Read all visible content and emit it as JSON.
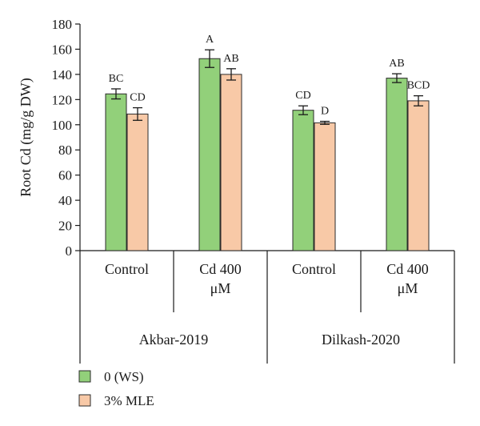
{
  "chart_data": {
    "type": "bar",
    "ylabel": "Root Cd (mg/g DW)",
    "xlabel": "",
    "ylim": [
      0,
      180
    ],
    "yticks": [
      0,
      20,
      40,
      60,
      80,
      100,
      120,
      140,
      160,
      180
    ],
    "groups": [
      {
        "name": "Akbar-2019",
        "categories": [
          "Control",
          "Cd 400 μM"
        ]
      },
      {
        "name": "Dilkash-2020",
        "categories": [
          "Control",
          "Cd 400 μM"
        ]
      }
    ],
    "categories": [
      {
        "line1": "Control",
        "line2": ""
      },
      {
        "line1": "Cd 400",
        "line2": "μM"
      },
      {
        "line1": "Control",
        "line2": ""
      },
      {
        "line1": "Cd 400",
        "line2": "μM"
      }
    ],
    "series": [
      {
        "name": "0 (WS)",
        "color": "#92d07a",
        "values": [
          124.5,
          152.5,
          111.5,
          137.0
        ],
        "errors": [
          4.0,
          7.0,
          3.5,
          3.5
        ],
        "letters": [
          "BC",
          "A",
          "CD",
          "AB"
        ]
      },
      {
        "name": "3% MLE",
        "color": "#f8c9a7",
        "values": [
          108.5,
          140.0,
          101.5,
          119.0
        ],
        "errors": [
          5.0,
          4.5,
          1.2,
          4.0
        ],
        "letters": [
          "CD",
          "AB",
          "D",
          "BCD"
        ]
      }
    ],
    "grid": false,
    "legend_position": "bottom-left"
  }
}
